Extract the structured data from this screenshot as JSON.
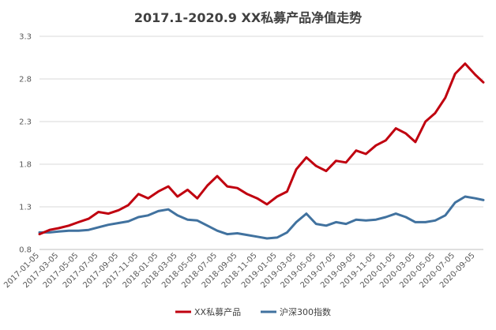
{
  "chart_data": {
    "type": "line",
    "title": "2017.1-2020.9 XX私募产品净值走势",
    "xlabel": "",
    "ylabel": "",
    "ylim": [
      0.8,
      3.3
    ],
    "yticks": [
      "0.8",
      "1.3",
      "1.8",
      "2.3",
      "2.8",
      "3.3"
    ],
    "x_start": "2017-01-05",
    "x_end": "2020-09-30",
    "x_tick_labels": [
      "2017-01-05",
      "2017-03-05",
      "2017-05-05",
      "2017-07-05",
      "2017-09-05",
      "2017-11-05",
      "2018-01-05",
      "2018-03-05",
      "2018-05-05",
      "2018-07-05",
      "2018-09-05",
      "2018-11-05",
      "2019-01-05",
      "2019-03-05",
      "2019-05-05",
      "2019-07-05",
      "2019-09-05",
      "2019-11-05",
      "2020-01-05",
      "2020-03-05",
      "2020-05-05",
      "2020-07-05",
      "2020-09-05"
    ],
    "grid": "horizontal",
    "legend_position": "bottom",
    "series": [
      {
        "name": "XX私募产品",
        "color": "#C0000F",
        "points": [
          [
            "2017-01-05",
            0.98
          ],
          [
            "2017-02-05",
            1.03
          ],
          [
            "2017-03-05",
            1.05
          ],
          [
            "2017-04-05",
            1.08
          ],
          [
            "2017-05-05",
            1.12
          ],
          [
            "2017-06-05",
            1.16
          ],
          [
            "2017-07-05",
            1.24
          ],
          [
            "2017-08-05",
            1.22
          ],
          [
            "2017-09-05",
            1.26
          ],
          [
            "2017-10-05",
            1.32
          ],
          [
            "2017-11-05",
            1.45
          ],
          [
            "2017-12-05",
            1.4
          ],
          [
            "2018-01-05",
            1.48
          ],
          [
            "2018-02-05",
            1.54
          ],
          [
            "2018-03-05",
            1.42
          ],
          [
            "2018-04-05",
            1.5
          ],
          [
            "2018-05-05",
            1.4
          ],
          [
            "2018-06-05",
            1.55
          ],
          [
            "2018-07-05",
            1.66
          ],
          [
            "2018-08-05",
            1.54
          ],
          [
            "2018-09-05",
            1.52
          ],
          [
            "2018-10-05",
            1.45
          ],
          [
            "2018-11-05",
            1.4
          ],
          [
            "2018-12-05",
            1.33
          ],
          [
            "2019-01-05",
            1.42
          ],
          [
            "2019-02-05",
            1.48
          ],
          [
            "2019-03-05",
            1.74
          ],
          [
            "2019-04-05",
            1.88
          ],
          [
            "2019-05-05",
            1.78
          ],
          [
            "2019-06-05",
            1.72
          ],
          [
            "2019-07-05",
            1.84
          ],
          [
            "2019-08-05",
            1.82
          ],
          [
            "2019-09-05",
            1.96
          ],
          [
            "2019-10-05",
            1.92
          ],
          [
            "2019-11-05",
            2.02
          ],
          [
            "2019-12-05",
            2.08
          ],
          [
            "2020-01-05",
            2.22
          ],
          [
            "2020-02-05",
            2.16
          ],
          [
            "2020-03-05",
            2.06
          ],
          [
            "2020-04-05",
            2.3
          ],
          [
            "2020-05-05",
            2.4
          ],
          [
            "2020-06-05",
            2.58
          ],
          [
            "2020-07-05",
            2.86
          ],
          [
            "2020-08-05",
            2.98
          ],
          [
            "2020-09-05",
            2.85
          ],
          [
            "2020-09-30",
            2.76
          ]
        ]
      },
      {
        "name": "沪深300指数",
        "color": "#41729F",
        "points": [
          [
            "2017-01-05",
            1.0
          ],
          [
            "2017-02-05",
            1.0
          ],
          [
            "2017-03-05",
            1.01
          ],
          [
            "2017-04-05",
            1.02
          ],
          [
            "2017-05-05",
            1.02
          ],
          [
            "2017-06-05",
            1.03
          ],
          [
            "2017-07-05",
            1.06
          ],
          [
            "2017-08-05",
            1.09
          ],
          [
            "2017-09-05",
            1.11
          ],
          [
            "2017-10-05",
            1.13
          ],
          [
            "2017-11-05",
            1.18
          ],
          [
            "2017-12-05",
            1.2
          ],
          [
            "2018-01-05",
            1.25
          ],
          [
            "2018-02-05",
            1.27
          ],
          [
            "2018-03-05",
            1.2
          ],
          [
            "2018-04-05",
            1.15
          ],
          [
            "2018-05-05",
            1.14
          ],
          [
            "2018-06-05",
            1.08
          ],
          [
            "2018-07-05",
            1.02
          ],
          [
            "2018-08-05",
            0.98
          ],
          [
            "2018-09-05",
            0.99
          ],
          [
            "2018-10-05",
            0.97
          ],
          [
            "2018-11-05",
            0.95
          ],
          [
            "2018-12-05",
            0.93
          ],
          [
            "2019-01-05",
            0.94
          ],
          [
            "2019-02-05",
            1.0
          ],
          [
            "2019-03-05",
            1.12
          ],
          [
            "2019-04-05",
            1.22
          ],
          [
            "2019-05-05",
            1.1
          ],
          [
            "2019-06-05",
            1.08
          ],
          [
            "2019-07-05",
            1.12
          ],
          [
            "2019-08-05",
            1.1
          ],
          [
            "2019-09-05",
            1.15
          ],
          [
            "2019-10-05",
            1.14
          ],
          [
            "2019-11-05",
            1.15
          ],
          [
            "2019-12-05",
            1.18
          ],
          [
            "2020-01-05",
            1.22
          ],
          [
            "2020-02-05",
            1.18
          ],
          [
            "2020-03-05",
            1.12
          ],
          [
            "2020-04-05",
            1.12
          ],
          [
            "2020-05-05",
            1.14
          ],
          [
            "2020-06-05",
            1.2
          ],
          [
            "2020-07-05",
            1.35
          ],
          [
            "2020-08-05",
            1.42
          ],
          [
            "2020-09-05",
            1.4
          ],
          [
            "2020-09-30",
            1.38
          ]
        ]
      }
    ]
  }
}
